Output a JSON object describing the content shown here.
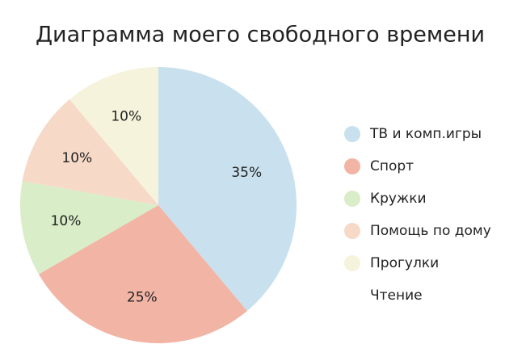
{
  "chart_data": {
    "type": "pie",
    "title": "Диаграмма моего свободного времени",
    "categories": [
      "ТВ и комп.игры",
      "Спорт",
      "Кружки",
      "Помощь по дому",
      "Прогулки",
      "Чтение"
    ],
    "values": [
      35,
      25,
      10,
      10,
      10,
      null
    ],
    "value_labels": [
      "35%",
      "25%",
      "10%",
      "10%",
      "10%",
      null
    ],
    "colors": [
      "#c9e1ee",
      "#f2b5a5",
      "#d9edc8",
      "#f7d9c8",
      "#f6f3dc",
      "#ffffff"
    ],
    "legend": "right"
  }
}
